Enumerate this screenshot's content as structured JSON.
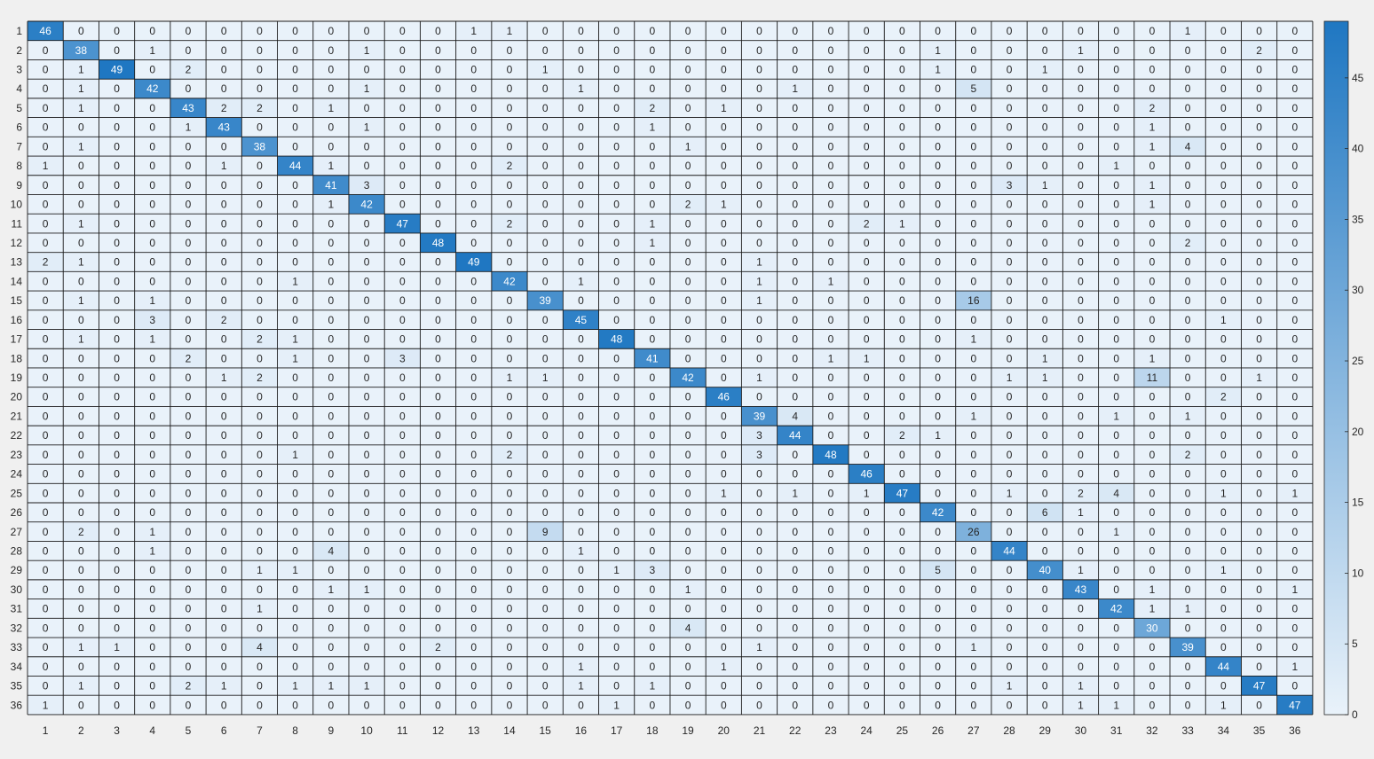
{
  "chart_data": {
    "type": "heatmap",
    "title": "",
    "xlabel": "",
    "ylabel": "",
    "x_ticks": [
      "1",
      "2",
      "3",
      "4",
      "5",
      "6",
      "7",
      "8",
      "9",
      "10",
      "11",
      "12",
      "13",
      "14",
      "15",
      "16",
      "17",
      "18",
      "19",
      "20",
      "21",
      "22",
      "23",
      "24",
      "25",
      "26",
      "27",
      "28",
      "29",
      "30",
      "31",
      "32",
      "33",
      "34",
      "35",
      "36"
    ],
    "y_ticks": [
      "1",
      "2",
      "3",
      "4",
      "5",
      "6",
      "7",
      "8",
      "9",
      "10",
      "11",
      "12",
      "13",
      "14",
      "15",
      "16",
      "17",
      "18",
      "19",
      "20",
      "21",
      "22",
      "23",
      "24",
      "25",
      "26",
      "27",
      "28",
      "29",
      "30",
      "31",
      "32",
      "33",
      "34",
      "35",
      "36"
    ],
    "colorbar": {
      "min": 0,
      "max": 49,
      "ticks": [
        0,
        5,
        10,
        15,
        20,
        25,
        30,
        35,
        40,
        45
      ],
      "low_color": "#e9f2fa",
      "high_color": "#1f77c2"
    },
    "matrix": [
      [
        46,
        0,
        0,
        0,
        0,
        0,
        0,
        0,
        0,
        0,
        0,
        0,
        1,
        1,
        0,
        0,
        0,
        0,
        0,
        0,
        0,
        0,
        0,
        0,
        0,
        0,
        0,
        0,
        0,
        0,
        0,
        0,
        1,
        0,
        0,
        0
      ],
      [
        0,
        38,
        0,
        1,
        0,
        0,
        0,
        0,
        0,
        1,
        0,
        0,
        0,
        0,
        0,
        0,
        0,
        0,
        0,
        0,
        0,
        0,
        0,
        0,
        0,
        1,
        0,
        0,
        0,
        1,
        0,
        0,
        0,
        0,
        2,
        0
      ],
      [
        0,
        1,
        49,
        0,
        2,
        0,
        0,
        0,
        0,
        0,
        0,
        0,
        0,
        0,
        1,
        0,
        0,
        0,
        0,
        0,
        0,
        0,
        0,
        0,
        0,
        1,
        0,
        0,
        1,
        0,
        0,
        0,
        0,
        0,
        0,
        0
      ],
      [
        0,
        1,
        0,
        42,
        0,
        0,
        0,
        0,
        0,
        1,
        0,
        0,
        0,
        0,
        0,
        1,
        0,
        0,
        0,
        0,
        0,
        1,
        0,
        0,
        0,
        0,
        5,
        0,
        0,
        0,
        0,
        0,
        0,
        0,
        0,
        0
      ],
      [
        0,
        1,
        0,
        0,
        43,
        2,
        2,
        0,
        1,
        0,
        0,
        0,
        0,
        0,
        0,
        0,
        0,
        2,
        0,
        1,
        0,
        0,
        0,
        0,
        0,
        0,
        0,
        0,
        0,
        0,
        0,
        2,
        0,
        0,
        0,
        0
      ],
      [
        0,
        0,
        0,
        0,
        1,
        43,
        0,
        0,
        0,
        1,
        0,
        0,
        0,
        0,
        0,
        0,
        0,
        1,
        0,
        0,
        0,
        0,
        0,
        0,
        0,
        0,
        0,
        0,
        0,
        0,
        0,
        1,
        0,
        0,
        0,
        0
      ],
      [
        0,
        1,
        0,
        0,
        0,
        0,
        38,
        0,
        0,
        0,
        0,
        0,
        0,
        0,
        0,
        0,
        0,
        0,
        1,
        0,
        0,
        0,
        0,
        0,
        0,
        0,
        0,
        0,
        0,
        0,
        0,
        1,
        4,
        0,
        0,
        0
      ],
      [
        1,
        0,
        0,
        0,
        0,
        1,
        0,
        44,
        1,
        0,
        0,
        0,
        0,
        2,
        0,
        0,
        0,
        0,
        0,
        0,
        0,
        0,
        0,
        0,
        0,
        0,
        0,
        0,
        0,
        0,
        1,
        0,
        0,
        0,
        0,
        0
      ],
      [
        0,
        0,
        0,
        0,
        0,
        0,
        0,
        0,
        41,
        3,
        0,
        0,
        0,
        0,
        0,
        0,
        0,
        0,
        0,
        0,
        0,
        0,
        0,
        0,
        0,
        0,
        0,
        3,
        1,
        0,
        0,
        1,
        0,
        0,
        0,
        0
      ],
      [
        0,
        0,
        0,
        0,
        0,
        0,
        0,
        0,
        1,
        42,
        0,
        0,
        0,
        0,
        0,
        0,
        0,
        0,
        2,
        1,
        0,
        0,
        0,
        0,
        0,
        0,
        0,
        0,
        0,
        0,
        0,
        1,
        0,
        0,
        0,
        0
      ],
      [
        0,
        1,
        0,
        0,
        0,
        0,
        0,
        0,
        0,
        0,
        47,
        0,
        0,
        2,
        0,
        0,
        0,
        1,
        0,
        0,
        0,
        0,
        0,
        2,
        1,
        0,
        0,
        0,
        0,
        0,
        0,
        0,
        0,
        0,
        0,
        0
      ],
      [
        0,
        0,
        0,
        0,
        0,
        0,
        0,
        0,
        0,
        0,
        0,
        48,
        0,
        0,
        0,
        0,
        0,
        1,
        0,
        0,
        0,
        0,
        0,
        0,
        0,
        0,
        0,
        0,
        0,
        0,
        0,
        0,
        2,
        0,
        0,
        0
      ],
      [
        2,
        1,
        0,
        0,
        0,
        0,
        0,
        0,
        0,
        0,
        0,
        0,
        49,
        0,
        0,
        0,
        0,
        0,
        0,
        0,
        1,
        0,
        0,
        0,
        0,
        0,
        0,
        0,
        0,
        0,
        0,
        0,
        0,
        0,
        0,
        0
      ],
      [
        0,
        0,
        0,
        0,
        0,
        0,
        0,
        1,
        0,
        0,
        0,
        0,
        0,
        42,
        0,
        1,
        0,
        0,
        0,
        0,
        1,
        0,
        1,
        0,
        0,
        0,
        0,
        0,
        0,
        0,
        0,
        0,
        0,
        0,
        0,
        0
      ],
      [
        0,
        1,
        0,
        1,
        0,
        0,
        0,
        0,
        0,
        0,
        0,
        0,
        0,
        0,
        39,
        0,
        0,
        0,
        0,
        0,
        1,
        0,
        0,
        0,
        0,
        0,
        16,
        0,
        0,
        0,
        0,
        0,
        0,
        0,
        0,
        0
      ],
      [
        0,
        0,
        0,
        3,
        0,
        2,
        0,
        0,
        0,
        0,
        0,
        0,
        0,
        0,
        0,
        45,
        0,
        0,
        0,
        0,
        0,
        0,
        0,
        0,
        0,
        0,
        0,
        0,
        0,
        0,
        0,
        0,
        0,
        1,
        0,
        0
      ],
      [
        0,
        1,
        0,
        1,
        0,
        0,
        2,
        1,
        0,
        0,
        0,
        0,
        0,
        0,
        0,
        0,
        48,
        0,
        0,
        0,
        0,
        0,
        0,
        0,
        0,
        0,
        1,
        0,
        0,
        0,
        0,
        0,
        0,
        0,
        0,
        0
      ],
      [
        0,
        0,
        0,
        0,
        2,
        0,
        0,
        1,
        0,
        0,
        3,
        0,
        0,
        0,
        0,
        0,
        0,
        41,
        0,
        0,
        0,
        0,
        1,
        1,
        0,
        0,
        0,
        0,
        1,
        0,
        0,
        1,
        0,
        0,
        0,
        0
      ],
      [
        0,
        0,
        0,
        0,
        0,
        1,
        2,
        0,
        0,
        0,
        0,
        0,
        0,
        1,
        1,
        0,
        0,
        0,
        42,
        0,
        1,
        0,
        0,
        0,
        0,
        0,
        0,
        1,
        1,
        0,
        0,
        11,
        0,
        0,
        1,
        0
      ],
      [
        0,
        0,
        0,
        0,
        0,
        0,
        0,
        0,
        0,
        0,
        0,
        0,
        0,
        0,
        0,
        0,
        0,
        0,
        0,
        46,
        0,
        0,
        0,
        0,
        0,
        0,
        0,
        0,
        0,
        0,
        0,
        0,
        0,
        2,
        0,
        0
      ],
      [
        0,
        0,
        0,
        0,
        0,
        0,
        0,
        0,
        0,
        0,
        0,
        0,
        0,
        0,
        0,
        0,
        0,
        0,
        0,
        0,
        39,
        4,
        0,
        0,
        0,
        0,
        1,
        0,
        0,
        0,
        1,
        0,
        1,
        0,
        0,
        0
      ],
      [
        0,
        0,
        0,
        0,
        0,
        0,
        0,
        0,
        0,
        0,
        0,
        0,
        0,
        0,
        0,
        0,
        0,
        0,
        0,
        0,
        3,
        44,
        0,
        0,
        2,
        1,
        0,
        0,
        0,
        0,
        0,
        0,
        0,
        0,
        0,
        0
      ],
      [
        0,
        0,
        0,
        0,
        0,
        0,
        0,
        1,
        0,
        0,
        0,
        0,
        0,
        2,
        0,
        0,
        0,
        0,
        0,
        0,
        3,
        0,
        48,
        0,
        0,
        0,
        0,
        0,
        0,
        0,
        0,
        0,
        2,
        0,
        0,
        0
      ],
      [
        0,
        0,
        0,
        0,
        0,
        0,
        0,
        0,
        0,
        0,
        0,
        0,
        0,
        0,
        0,
        0,
        0,
        0,
        0,
        0,
        0,
        0,
        0,
        46,
        0,
        0,
        0,
        0,
        0,
        0,
        0,
        0,
        0,
        0,
        0,
        0
      ],
      [
        0,
        0,
        0,
        0,
        0,
        0,
        0,
        0,
        0,
        0,
        0,
        0,
        0,
        0,
        0,
        0,
        0,
        0,
        0,
        1,
        0,
        1,
        0,
        1,
        47,
        0,
        0,
        1,
        0,
        2,
        4,
        0,
        0,
        1,
        0,
        1
      ],
      [
        0,
        0,
        0,
        0,
        0,
        0,
        0,
        0,
        0,
        0,
        0,
        0,
        0,
        0,
        0,
        0,
        0,
        0,
        0,
        0,
        0,
        0,
        0,
        0,
        0,
        42,
        0,
        0,
        6,
        1,
        0,
        0,
        0,
        0,
        0,
        0
      ],
      [
        0,
        2,
        0,
        1,
        0,
        0,
        0,
        0,
        0,
        0,
        0,
        0,
        0,
        0,
        9,
        0,
        0,
        0,
        0,
        0,
        0,
        0,
        0,
        0,
        0,
        0,
        26,
        0,
        0,
        0,
        1,
        0,
        0,
        0,
        0,
        0
      ],
      [
        0,
        0,
        0,
        1,
        0,
        0,
        0,
        0,
        4,
        0,
        0,
        0,
        0,
        0,
        0,
        1,
        0,
        0,
        0,
        0,
        0,
        0,
        0,
        0,
        0,
        0,
        0,
        44,
        0,
        0,
        0,
        0,
        0,
        0,
        0,
        0
      ],
      [
        0,
        0,
        0,
        0,
        0,
        0,
        1,
        1,
        0,
        0,
        0,
        0,
        0,
        0,
        0,
        0,
        1,
        3,
        0,
        0,
        0,
        0,
        0,
        0,
        0,
        5,
        0,
        0,
        40,
        1,
        0,
        0,
        0,
        1,
        0,
        0
      ],
      [
        0,
        0,
        0,
        0,
        0,
        0,
        0,
        0,
        1,
        1,
        0,
        0,
        0,
        0,
        0,
        0,
        0,
        0,
        1,
        0,
        0,
        0,
        0,
        0,
        0,
        0,
        0,
        0,
        0,
        43,
        0,
        1,
        0,
        0,
        0,
        1
      ],
      [
        0,
        0,
        0,
        0,
        0,
        0,
        1,
        0,
        0,
        0,
        0,
        0,
        0,
        0,
        0,
        0,
        0,
        0,
        0,
        0,
        0,
        0,
        0,
        0,
        0,
        0,
        0,
        0,
        0,
        0,
        42,
        1,
        1,
        0,
        0,
        0
      ],
      [
        0,
        0,
        0,
        0,
        0,
        0,
        0,
        0,
        0,
        0,
        0,
        0,
        0,
        0,
        0,
        0,
        0,
        0,
        4,
        0,
        0,
        0,
        0,
        0,
        0,
        0,
        0,
        0,
        0,
        0,
        0,
        30,
        0,
        0,
        0,
        0
      ],
      [
        0,
        1,
        1,
        0,
        0,
        0,
        4,
        0,
        0,
        0,
        0,
        2,
        0,
        0,
        0,
        0,
        0,
        0,
        0,
        0,
        1,
        0,
        0,
        0,
        0,
        0,
        1,
        0,
        0,
        0,
        0,
        0,
        39,
        0,
        0,
        0
      ],
      [
        0,
        0,
        0,
        0,
        0,
        0,
        0,
        0,
        0,
        0,
        0,
        0,
        0,
        0,
        0,
        1,
        0,
        0,
        0,
        1,
        0,
        0,
        0,
        0,
        0,
        0,
        0,
        0,
        0,
        0,
        0,
        0,
        0,
        44,
        0,
        1
      ],
      [
        0,
        1,
        0,
        0,
        2,
        1,
        0,
        1,
        1,
        1,
        0,
        0,
        0,
        0,
        0,
        1,
        0,
        1,
        0,
        0,
        0,
        0,
        0,
        0,
        0,
        0,
        0,
        1,
        0,
        1,
        0,
        0,
        0,
        0,
        47,
        0
      ],
      [
        1,
        0,
        0,
        0,
        0,
        0,
        0,
        0,
        0,
        0,
        0,
        0,
        0,
        0,
        0,
        0,
        1,
        0,
        0,
        0,
        0,
        0,
        0,
        0,
        0,
        0,
        0,
        0,
        0,
        1,
        1,
        0,
        0,
        1,
        0,
        47
      ]
    ]
  }
}
